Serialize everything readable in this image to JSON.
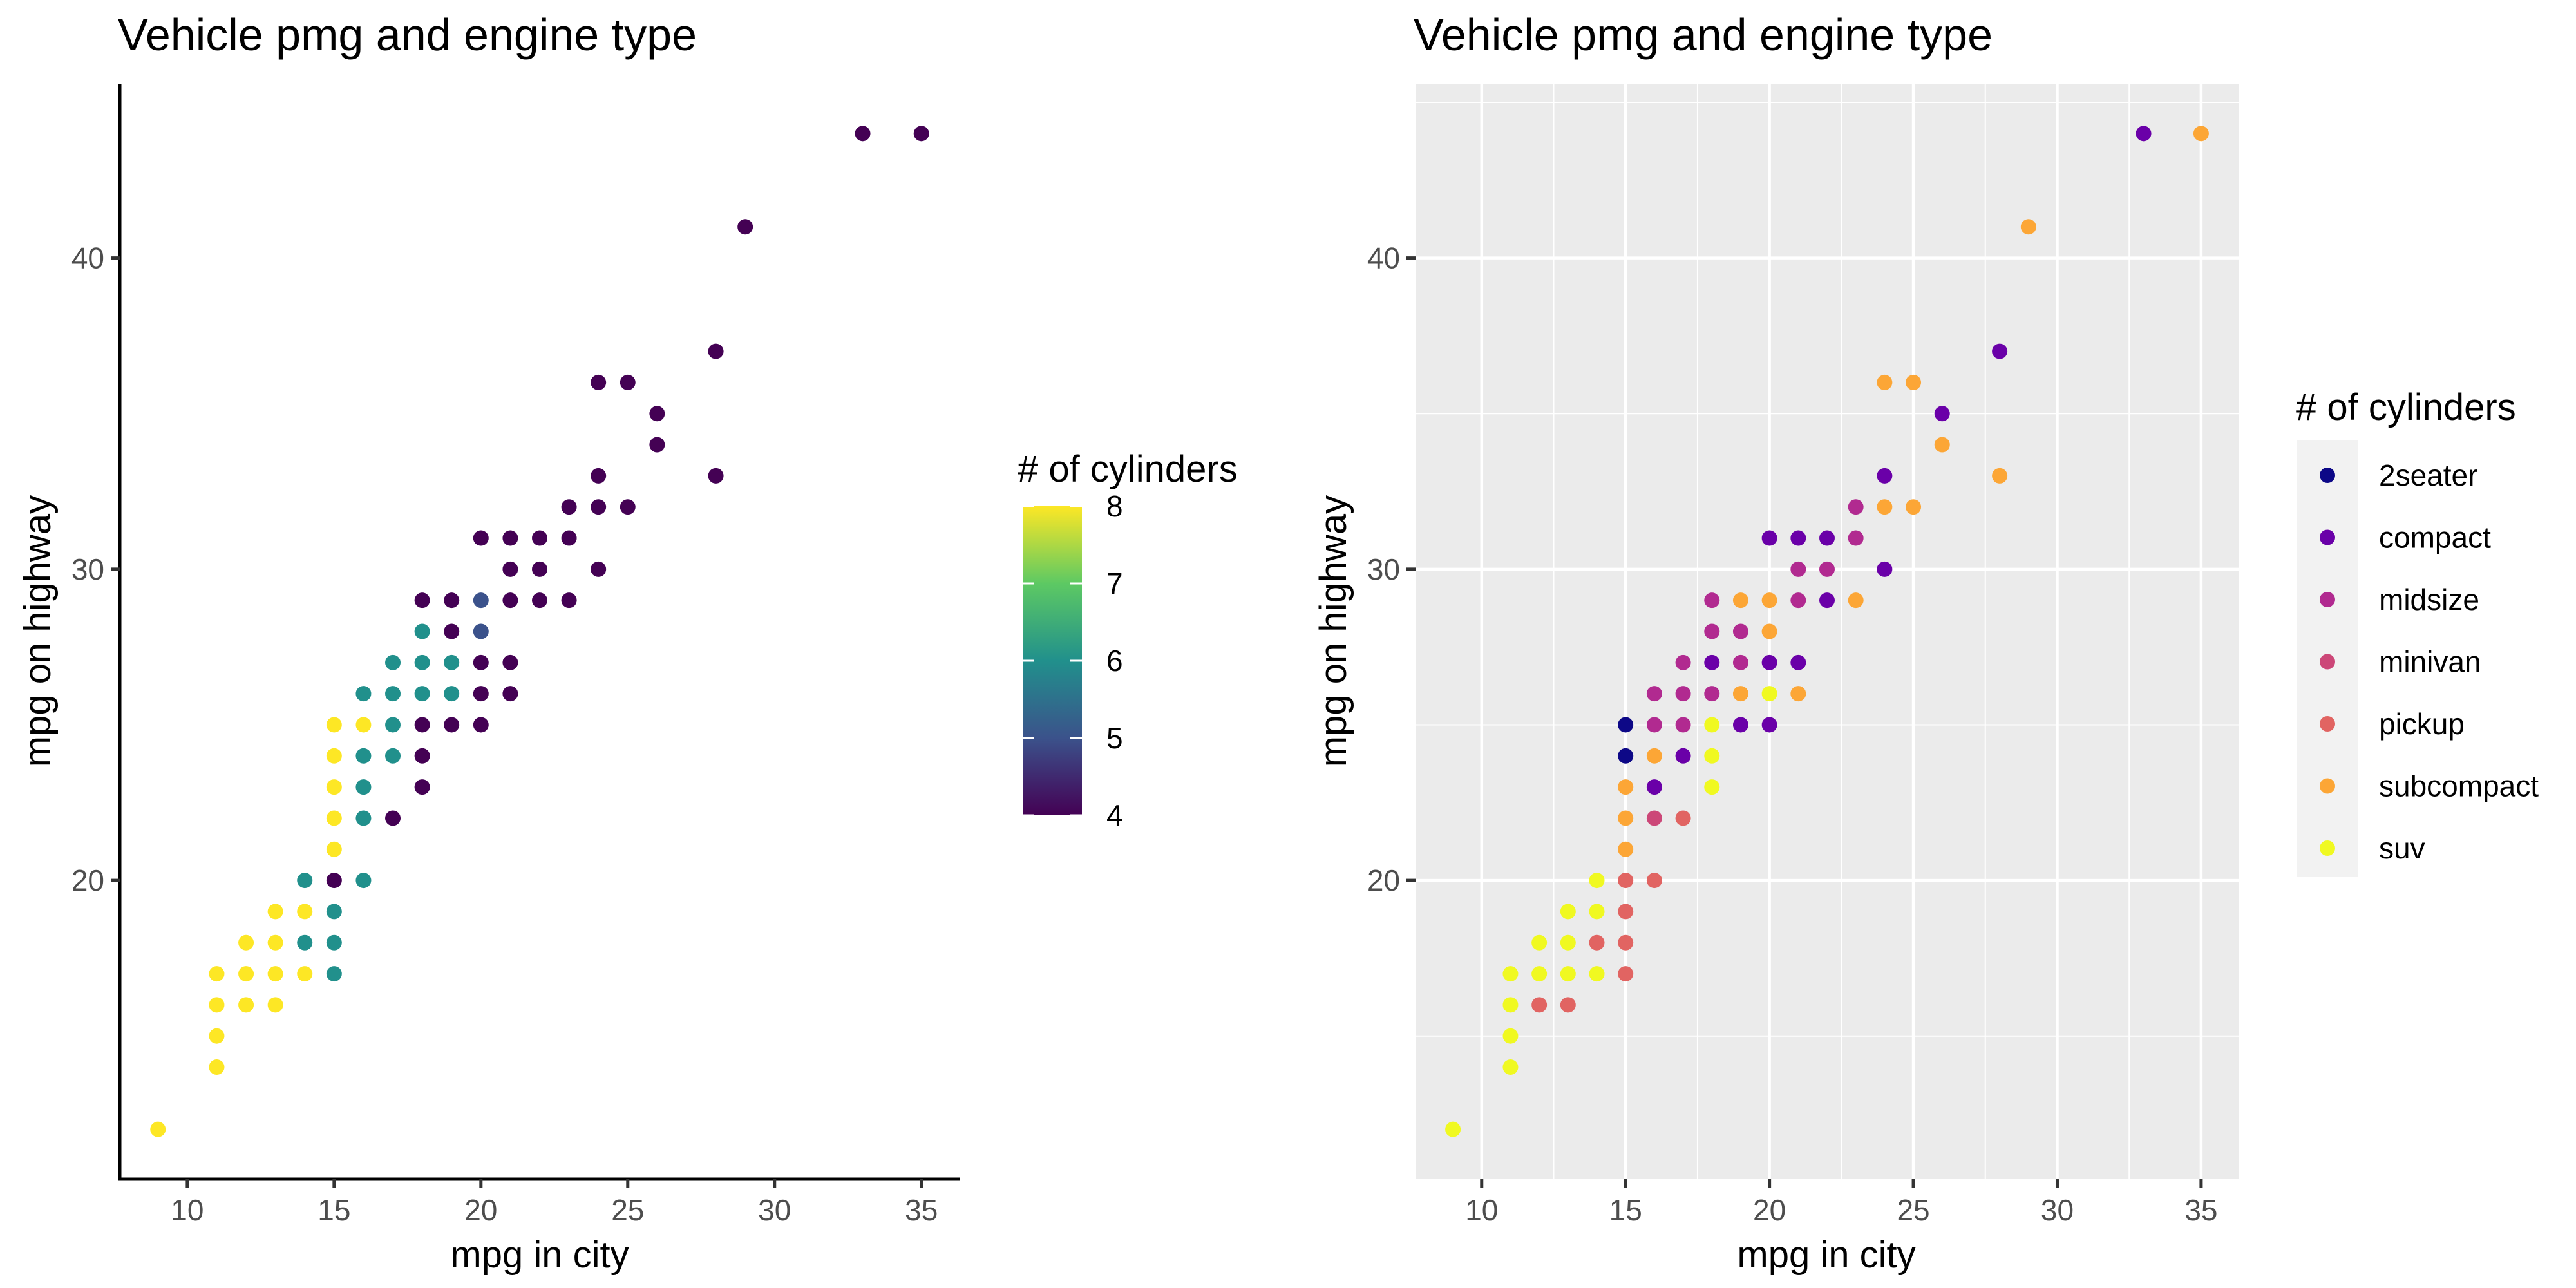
{
  "chart_data": [
    {
      "type": "scatter",
      "title": "Vehicle pmg and engine type",
      "xlabel": "mpg in city",
      "ylabel": "mpg on highway",
      "xlim": [
        7.7,
        36.3
      ],
      "ylim": [
        10.4,
        45.6
      ],
      "xticks": [
        10,
        15,
        20,
        25,
        30,
        35
      ],
      "yticks": [
        20,
        30,
        40
      ],
      "grid": false,
      "legend": {
        "title": "# of cylinders",
        "kind": "continuous",
        "range": [
          4,
          8
        ],
        "ticks": [
          "8",
          "7",
          "6",
          "5",
          "4"
        ],
        "colorscale": [
          "#440154",
          "#3b528b",
          "#21908c",
          "#5dc963",
          "#fde725"
        ],
        "placement": "right"
      },
      "points": [
        {
          "x": 9,
          "y": 12,
          "cyl": 8
        },
        {
          "x": 11,
          "y": 14,
          "cyl": 8
        },
        {
          "x": 11,
          "y": 15,
          "cyl": 8
        },
        {
          "x": 11,
          "y": 16,
          "cyl": 8
        },
        {
          "x": 11,
          "y": 17,
          "cyl": 8
        },
        {
          "x": 12,
          "y": 16,
          "cyl": 8
        },
        {
          "x": 12,
          "y": 17,
          "cyl": 8
        },
        {
          "x": 12,
          "y": 18,
          "cyl": 8
        },
        {
          "x": 13,
          "y": 16,
          "cyl": 8
        },
        {
          "x": 13,
          "y": 17,
          "cyl": 8
        },
        {
          "x": 13,
          "y": 18,
          "cyl": 8
        },
        {
          "x": 13,
          "y": 19,
          "cyl": 8
        },
        {
          "x": 14,
          "y": 17,
          "cyl": 8
        },
        {
          "x": 14,
          "y": 18,
          "cyl": 6
        },
        {
          "x": 14,
          "y": 19,
          "cyl": 8
        },
        {
          "x": 14,
          "y": 20,
          "cyl": 6
        },
        {
          "x": 15,
          "y": 17,
          "cyl": 6
        },
        {
          "x": 15,
          "y": 18,
          "cyl": 6
        },
        {
          "x": 15,
          "y": 19,
          "cyl": 6
        },
        {
          "x": 15,
          "y": 20,
          "cyl": 4
        },
        {
          "x": 15,
          "y": 21,
          "cyl": 8
        },
        {
          "x": 15,
          "y": 22,
          "cyl": 8
        },
        {
          "x": 15,
          "y": 23,
          "cyl": 8
        },
        {
          "x": 15,
          "y": 24,
          "cyl": 8
        },
        {
          "x": 15,
          "y": 25,
          "cyl": 8
        },
        {
          "x": 16,
          "y": 20,
          "cyl": 6
        },
        {
          "x": 16,
          "y": 22,
          "cyl": 6
        },
        {
          "x": 16,
          "y": 23,
          "cyl": 6
        },
        {
          "x": 16,
          "y": 24,
          "cyl": 6
        },
        {
          "x": 16,
          "y": 25,
          "cyl": 8
        },
        {
          "x": 16,
          "y": 26,
          "cyl": 6
        },
        {
          "x": 17,
          "y": 22,
          "cyl": 4
        },
        {
          "x": 17,
          "y": 24,
          "cyl": 6
        },
        {
          "x": 17,
          "y": 25,
          "cyl": 6
        },
        {
          "x": 17,
          "y": 26,
          "cyl": 6
        },
        {
          "x": 17,
          "y": 27,
          "cyl": 6
        },
        {
          "x": 18,
          "y": 23,
          "cyl": 4
        },
        {
          "x": 18,
          "y": 24,
          "cyl": 4
        },
        {
          "x": 18,
          "y": 25,
          "cyl": 4
        },
        {
          "x": 18,
          "y": 26,
          "cyl": 6
        },
        {
          "x": 18,
          "y": 27,
          "cyl": 6
        },
        {
          "x": 18,
          "y": 28,
          "cyl": 6
        },
        {
          "x": 18,
          "y": 29,
          "cyl": 4
        },
        {
          "x": 19,
          "y": 25,
          "cyl": 4
        },
        {
          "x": 19,
          "y": 26,
          "cyl": 6
        },
        {
          "x": 19,
          "y": 27,
          "cyl": 6
        },
        {
          "x": 19,
          "y": 28,
          "cyl": 4
        },
        {
          "x": 19,
          "y": 29,
          "cyl": 4
        },
        {
          "x": 20,
          "y": 25,
          "cyl": 4
        },
        {
          "x": 20,
          "y": 26,
          "cyl": 4
        },
        {
          "x": 20,
          "y": 27,
          "cyl": 4
        },
        {
          "x": 20,
          "y": 28,
          "cyl": 5
        },
        {
          "x": 20,
          "y": 29,
          "cyl": 5
        },
        {
          "x": 20,
          "y": 31,
          "cyl": 4
        },
        {
          "x": 21,
          "y": 26,
          "cyl": 4
        },
        {
          "x": 21,
          "y": 27,
          "cyl": 4
        },
        {
          "x": 21,
          "y": 29,
          "cyl": 4
        },
        {
          "x": 21,
          "y": 30,
          "cyl": 4
        },
        {
          "x": 21,
          "y": 31,
          "cyl": 4
        },
        {
          "x": 22,
          "y": 29,
          "cyl": 4
        },
        {
          "x": 22,
          "y": 30,
          "cyl": 4
        },
        {
          "x": 22,
          "y": 31,
          "cyl": 4
        },
        {
          "x": 23,
          "y": 29,
          "cyl": 4
        },
        {
          "x": 23,
          "y": 31,
          "cyl": 4
        },
        {
          "x": 23,
          "y": 32,
          "cyl": 4
        },
        {
          "x": 24,
          "y": 30,
          "cyl": 4
        },
        {
          "x": 24,
          "y": 32,
          "cyl": 4
        },
        {
          "x": 24,
          "y": 33,
          "cyl": 4
        },
        {
          "x": 24,
          "y": 36,
          "cyl": 4
        },
        {
          "x": 25,
          "y": 32,
          "cyl": 4
        },
        {
          "x": 25,
          "y": 36,
          "cyl": 4
        },
        {
          "x": 26,
          "y": 34,
          "cyl": 4
        },
        {
          "x": 26,
          "y": 35,
          "cyl": 4
        },
        {
          "x": 28,
          "y": 33,
          "cyl": 4
        },
        {
          "x": 28,
          "y": 37,
          "cyl": 4
        },
        {
          "x": 29,
          "y": 41,
          "cyl": 4
        },
        {
          "x": 33,
          "y": 44,
          "cyl": 4
        },
        {
          "x": 35,
          "y": 44,
          "cyl": 4
        }
      ]
    },
    {
      "type": "scatter",
      "title": "Vehicle pmg and engine type",
      "xlabel": "mpg in city",
      "ylabel": "mpg on highway",
      "xlim": [
        7.7,
        36.3
      ],
      "ylim": [
        10.4,
        45.6
      ],
      "xticks": [
        10,
        15,
        20,
        25,
        30,
        35
      ],
      "yticks": [
        20,
        30,
        40
      ],
      "grid": true,
      "background": "#ebebeb",
      "legend": {
        "title": "# of cylinders",
        "kind": "discrete",
        "placement": "right",
        "items": [
          {
            "label": "2seater",
            "color": "#0d0887"
          },
          {
            "label": "compact",
            "color": "#6a00a8"
          },
          {
            "label": "midsize",
            "color": "#b12a90"
          },
          {
            "label": "minivan",
            "color": "#cc4778"
          },
          {
            "label": "pickup",
            "color": "#e16462"
          },
          {
            "label": "subcompact",
            "color": "#fca636"
          },
          {
            "label": "suv",
            "color": "#f0f921"
          }
        ]
      },
      "points": [
        {
          "x": 9,
          "y": 12,
          "cls": "suv"
        },
        {
          "x": 11,
          "y": 14,
          "cls": "suv"
        },
        {
          "x": 11,
          "y": 15,
          "cls": "suv"
        },
        {
          "x": 11,
          "y": 16,
          "cls": "suv"
        },
        {
          "x": 11,
          "y": 17,
          "cls": "suv"
        },
        {
          "x": 12,
          "y": 16,
          "cls": "pickup"
        },
        {
          "x": 12,
          "y": 17,
          "cls": "suv"
        },
        {
          "x": 12,
          "y": 18,
          "cls": "suv"
        },
        {
          "x": 13,
          "y": 16,
          "cls": "pickup"
        },
        {
          "x": 13,
          "y": 17,
          "cls": "suv"
        },
        {
          "x": 13,
          "y": 18,
          "cls": "suv"
        },
        {
          "x": 13,
          "y": 19,
          "cls": "suv"
        },
        {
          "x": 14,
          "y": 17,
          "cls": "suv"
        },
        {
          "x": 14,
          "y": 18,
          "cls": "pickup"
        },
        {
          "x": 14,
          "y": 19,
          "cls": "suv"
        },
        {
          "x": 14,
          "y": 20,
          "cls": "suv"
        },
        {
          "x": 15,
          "y": 17,
          "cls": "pickup"
        },
        {
          "x": 15,
          "y": 18,
          "cls": "pickup"
        },
        {
          "x": 15,
          "y": 19,
          "cls": "pickup"
        },
        {
          "x": 15,
          "y": 20,
          "cls": "pickup"
        },
        {
          "x": 15,
          "y": 21,
          "cls": "subcompact"
        },
        {
          "x": 15,
          "y": 22,
          "cls": "subcompact"
        },
        {
          "x": 15,
          "y": 23,
          "cls": "subcompact"
        },
        {
          "x": 15,
          "y": 24,
          "cls": "2seater"
        },
        {
          "x": 15,
          "y": 25,
          "cls": "2seater"
        },
        {
          "x": 16,
          "y": 20,
          "cls": "pickup"
        },
        {
          "x": 16,
          "y": 22,
          "cls": "minivan"
        },
        {
          "x": 16,
          "y": 23,
          "cls": "compact"
        },
        {
          "x": 16,
          "y": 24,
          "cls": "subcompact"
        },
        {
          "x": 16,
          "y": 25,
          "cls": "midsize"
        },
        {
          "x": 16,
          "y": 26,
          "cls": "midsize"
        },
        {
          "x": 17,
          "y": 22,
          "cls": "pickup"
        },
        {
          "x": 17,
          "y": 24,
          "cls": "compact"
        },
        {
          "x": 17,
          "y": 25,
          "cls": "midsize"
        },
        {
          "x": 17,
          "y": 26,
          "cls": "midsize"
        },
        {
          "x": 17,
          "y": 27,
          "cls": "midsize"
        },
        {
          "x": 18,
          "y": 23,
          "cls": "suv"
        },
        {
          "x": 18,
          "y": 24,
          "cls": "suv"
        },
        {
          "x": 18,
          "y": 25,
          "cls": "suv"
        },
        {
          "x": 18,
          "y": 26,
          "cls": "midsize"
        },
        {
          "x": 18,
          "y": 27,
          "cls": "compact"
        },
        {
          "x": 18,
          "y": 28,
          "cls": "midsize"
        },
        {
          "x": 18,
          "y": 29,
          "cls": "midsize"
        },
        {
          "x": 19,
          "y": 25,
          "cls": "compact"
        },
        {
          "x": 19,
          "y": 26,
          "cls": "subcompact"
        },
        {
          "x": 19,
          "y": 27,
          "cls": "midsize"
        },
        {
          "x": 19,
          "y": 28,
          "cls": "midsize"
        },
        {
          "x": 19,
          "y": 29,
          "cls": "subcompact"
        },
        {
          "x": 20,
          "y": 25,
          "cls": "compact"
        },
        {
          "x": 20,
          "y": 26,
          "cls": "suv"
        },
        {
          "x": 20,
          "y": 27,
          "cls": "compact"
        },
        {
          "x": 20,
          "y": 28,
          "cls": "subcompact"
        },
        {
          "x": 20,
          "y": 29,
          "cls": "subcompact"
        },
        {
          "x": 20,
          "y": 31,
          "cls": "compact"
        },
        {
          "x": 21,
          "y": 26,
          "cls": "subcompact"
        },
        {
          "x": 21,
          "y": 27,
          "cls": "compact"
        },
        {
          "x": 21,
          "y": 29,
          "cls": "midsize"
        },
        {
          "x": 21,
          "y": 30,
          "cls": "midsize"
        },
        {
          "x": 21,
          "y": 31,
          "cls": "compact"
        },
        {
          "x": 22,
          "y": 29,
          "cls": "compact"
        },
        {
          "x": 22,
          "y": 30,
          "cls": "midsize"
        },
        {
          "x": 22,
          "y": 31,
          "cls": "compact"
        },
        {
          "x": 23,
          "y": 29,
          "cls": "subcompact"
        },
        {
          "x": 23,
          "y": 31,
          "cls": "midsize"
        },
        {
          "x": 23,
          "y": 32,
          "cls": "midsize"
        },
        {
          "x": 24,
          "y": 30,
          "cls": "compact"
        },
        {
          "x": 24,
          "y": 32,
          "cls": "subcompact"
        },
        {
          "x": 24,
          "y": 33,
          "cls": "compact"
        },
        {
          "x": 24,
          "y": 36,
          "cls": "subcompact"
        },
        {
          "x": 25,
          "y": 32,
          "cls": "subcompact"
        },
        {
          "x": 25,
          "y": 36,
          "cls": "subcompact"
        },
        {
          "x": 26,
          "y": 34,
          "cls": "subcompact"
        },
        {
          "x": 26,
          "y": 35,
          "cls": "compact"
        },
        {
          "x": 28,
          "y": 33,
          "cls": "subcompact"
        },
        {
          "x": 28,
          "y": 37,
          "cls": "compact"
        },
        {
          "x": 29,
          "y": 41,
          "cls": "subcompact"
        },
        {
          "x": 33,
          "y": 44,
          "cls": "compact"
        },
        {
          "x": 35,
          "y": 44,
          "cls": "subcompact"
        }
      ]
    }
  ]
}
